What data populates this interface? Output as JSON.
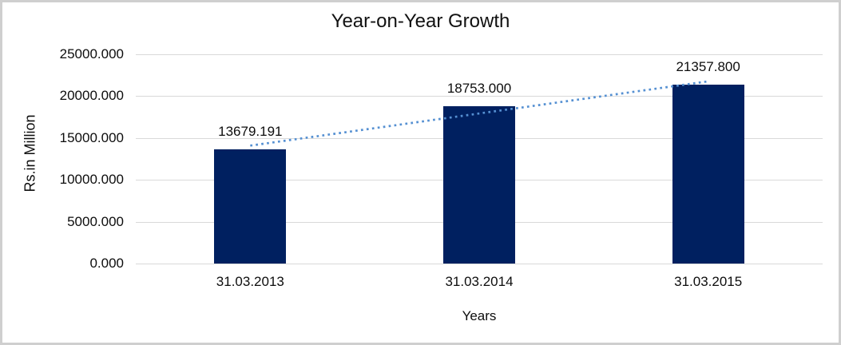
{
  "chart_data": {
    "type": "bar",
    "title": "Year-on-Year Growth",
    "xlabel": "Years",
    "ylabel": "Rs.in Million",
    "categories": [
      "31.03.2013",
      "31.03.2014",
      "31.03.2015"
    ],
    "values": [
      13679.191,
      18753.0,
      21357.8
    ],
    "data_labels": [
      "13679.191",
      "18753.000",
      "21357.800"
    ],
    "yticks": [
      "0.000",
      "5000.000",
      "10000.000",
      "15000.000",
      "20000.000",
      "25000.000"
    ],
    "ylim": [
      0,
      25000
    ],
    "ytick_step": 5000,
    "grid": true,
    "legend": "none",
    "colors": {
      "bar": "#002060",
      "trendline": "#5590d2",
      "gridline": "#d9d9d9",
      "frame_border": "#cfcfcf",
      "text": "#0d0d0d"
    },
    "trendline": {
      "kind": "linear",
      "style": "dotted"
    }
  }
}
